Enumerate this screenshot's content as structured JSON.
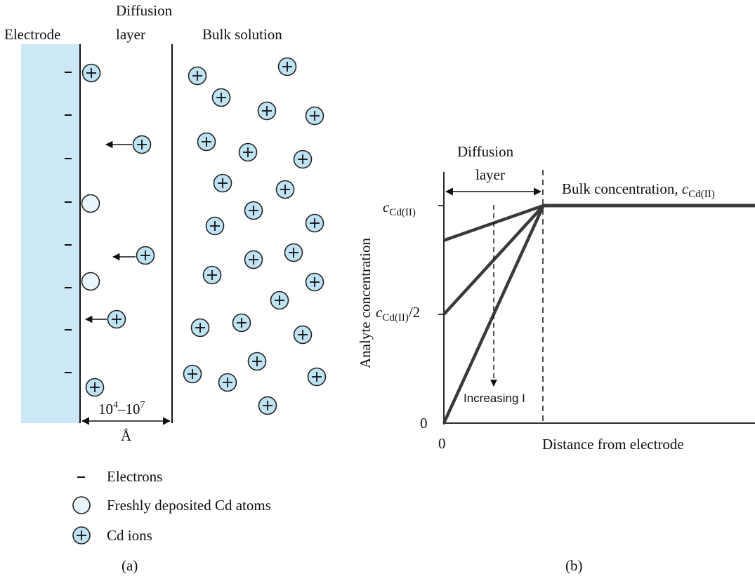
{
  "panel_a": {
    "label_electrode": "Electrode",
    "label_diffusion_line1": "Diffusion",
    "label_diffusion_line2": "layer",
    "label_bulk": "Bulk solution",
    "electron_symbol": "–",
    "thickness_base_lo": "10",
    "thickness_exp_lo": "4",
    "thickness_dash": "–",
    "thickness_base_hi": "10",
    "thickness_exp_hi": "7",
    "thickness_unit": "Å",
    "legend": [
      {
        "symbol": "electron",
        "label": "Electrons"
      },
      {
        "symbol": "atom",
        "label": "Freshly deposited Cd atoms"
      },
      {
        "symbol": "ion",
        "label": "Cd ions"
      }
    ],
    "caption": "(a)",
    "colors": {
      "electrode": "#cce8f6",
      "ion": "#bfe3f3",
      "atom": "#e9f6fc"
    }
  },
  "panel_b": {
    "caption": "(b)",
    "ylabel": "Analyte concentration",
    "xlabel": "Distance from electrode",
    "x_tick_0": "0",
    "y_tick_0": "0",
    "y_tick_half_var": "c",
    "y_tick_half_sub": "Cd(II)",
    "y_tick_half_suffix": "/2",
    "y_tick_full_var": "c",
    "y_tick_full_sub": "Cd(II)",
    "diffusion_line1": "Diffusion",
    "diffusion_line2": "layer",
    "bulk_text": "Bulk concentration, ",
    "bulk_var": "c",
    "bulk_sub": "Cd(II)",
    "arrow_label": "Increasing I"
  },
  "chart_data": {
    "type": "line",
    "xlabel": "Distance from electrode",
    "ylabel": "Analyte concentration",
    "x_domain": [
      0,
      1
    ],
    "y_domain": [
      0,
      1
    ],
    "diffusion_layer_edge_x": 0.32,
    "series": [
      {
        "points": [
          [
            0,
            0.84
          ],
          [
            0.32,
            1.0
          ],
          [
            1,
            1.0
          ]
        ]
      },
      {
        "points": [
          [
            0,
            0.5
          ],
          [
            0.32,
            1.0
          ],
          [
            1,
            1.0
          ]
        ]
      },
      {
        "points": [
          [
            0,
            0.0
          ],
          [
            0.32,
            1.0
          ],
          [
            1,
            1.0
          ]
        ]
      }
    ]
  }
}
